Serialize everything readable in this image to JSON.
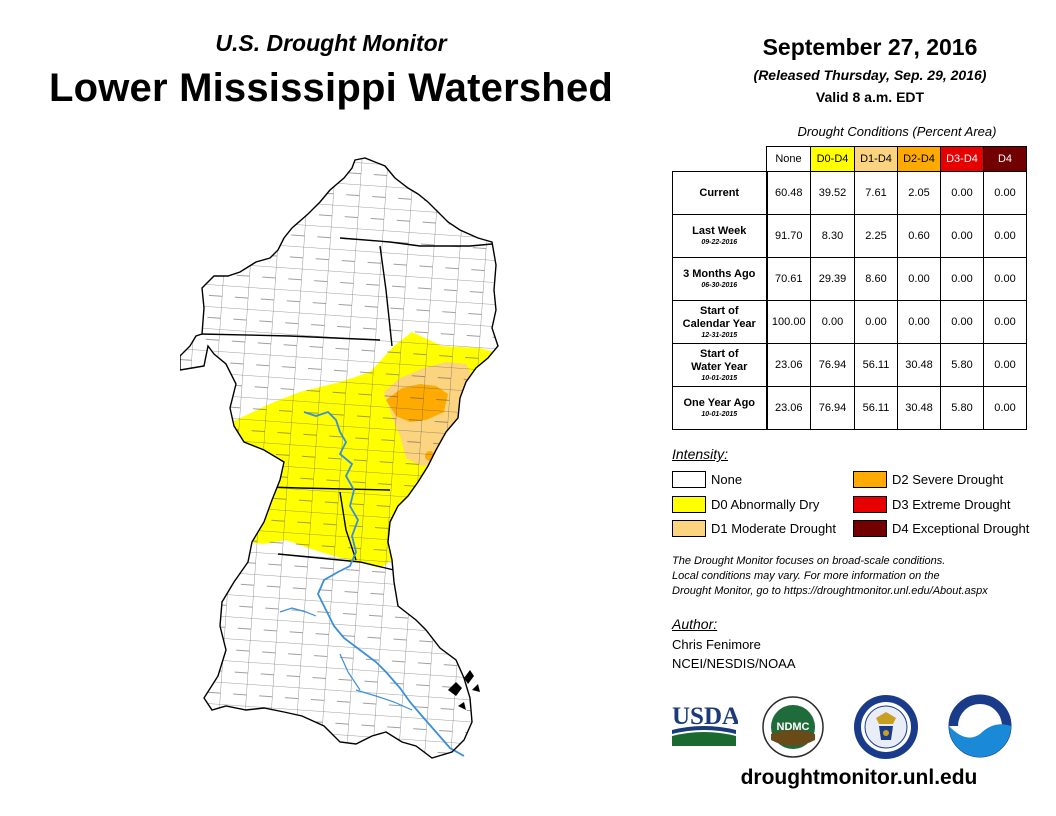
{
  "header": {
    "subtitle": "U.S. Drought Monitor",
    "title": "Lower Mississippi Watershed",
    "date": "September 27, 2016",
    "released": "(Released Thursday, Sep. 29, 2016)",
    "valid": "Valid 8 a.m. EDT"
  },
  "table": {
    "caption": "Drought Conditions (Percent Area)",
    "columns": [
      "None",
      "D0-D4",
      "D1-D4",
      "D2-D4",
      "D3-D4",
      "D4"
    ],
    "column_colors": [
      "#ffffff",
      "#ffff00",
      "#fcd37f",
      "#ffaa00",
      "#e60000",
      "#730000"
    ],
    "rows": [
      {
        "label_line1": "Current",
        "label_line2": "",
        "date": "",
        "values": [
          "60.48",
          "39.52",
          "7.61",
          "2.05",
          "0.00",
          "0.00"
        ]
      },
      {
        "label_line1": "Last Week",
        "label_line2": "",
        "date": "09-22-2016",
        "values": [
          "91.70",
          "8.30",
          "2.25",
          "0.60",
          "0.00",
          "0.00"
        ]
      },
      {
        "label_line1": "3 Months Ago",
        "label_line2": "",
        "date": "06-30-2016",
        "values": [
          "70.61",
          "29.39",
          "8.60",
          "0.00",
          "0.00",
          "0.00"
        ]
      },
      {
        "label_line1": "Start of",
        "label_line2": "Calendar Year",
        "date": "12-31-2015",
        "values": [
          "100.00",
          "0.00",
          "0.00",
          "0.00",
          "0.00",
          "0.00"
        ]
      },
      {
        "label_line1": "Start of",
        "label_line2": "Water Year",
        "date": "10-01-2015",
        "values": [
          "23.06",
          "76.94",
          "56.11",
          "30.48",
          "5.80",
          "0.00"
        ]
      },
      {
        "label_line1": "One Year Ago",
        "label_line2": "",
        "date": "10-01-2015",
        "values": [
          "23.06",
          "76.94",
          "56.11",
          "30.48",
          "5.80",
          "0.00"
        ]
      }
    ]
  },
  "legend": {
    "title": "Intensity:",
    "items": [
      {
        "label": "None",
        "color": "#ffffff"
      },
      {
        "label": "D0 Abnormally Dry",
        "color": "#ffff00"
      },
      {
        "label": "D1 Moderate Drought",
        "color": "#fcd37f"
      },
      {
        "label": "D2 Severe Drought",
        "color": "#ffaa00"
      },
      {
        "label": "D3 Extreme Drought",
        "color": "#e60000"
      },
      {
        "label": "D4 Exceptional Drought",
        "color": "#730000"
      }
    ]
  },
  "note": {
    "line1": "The Drought Monitor focuses on broad-scale conditions.",
    "line2": "Local conditions may vary. For more information on the",
    "line3": "Drought Monitor, go to https://droughtmonitor.unl.edu/About.aspx"
  },
  "author": {
    "label": "Author:",
    "name": "Chris Fenimore",
    "org": "NCEI/NESDIS/NOAA"
  },
  "logos": {
    "usda": "USDA",
    "ndmc": "NDMC",
    "noaa": "NOAA"
  },
  "website": "droughtmonitor.unl.edu",
  "map_colors": {
    "none": "#ffffff",
    "d0": "#ffff00",
    "d1": "#fcd37f",
    "d2": "#ffaa00",
    "river": "#3a8fd9",
    "border": "#000000",
    "county": "#555555"
  }
}
